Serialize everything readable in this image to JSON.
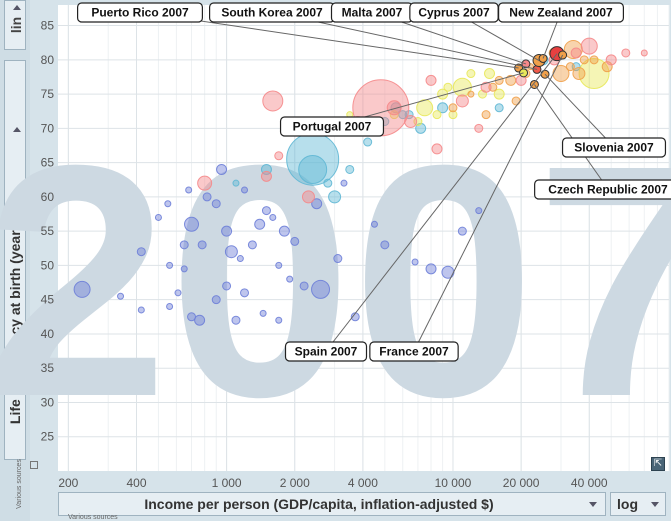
{
  "y_scale_selector": {
    "value": "lin"
  },
  "y_axis_selector": {
    "label": "Life expectancy at birth (years)",
    "source": "Various sources"
  },
  "x_axis_selector": {
    "label": "Income per person (GDP/capita, inflation-adjusted $)",
    "source": "Various sources"
  },
  "x_scale_selector": {
    "value": "log"
  },
  "chart_data": {
    "type": "scatter",
    "year_watermark": "2007",
    "xlabel": "Income per person (GDP/capita, inflation-adjusted $)",
    "ylabel": "Life expectancy at birth (years)",
    "x_scale": "log",
    "y_scale": "linear",
    "xlim": [
      180,
      90000
    ],
    "ylim": [
      20,
      88
    ],
    "x_ticks": [
      200,
      400,
      1000,
      2000,
      4000,
      10000,
      20000,
      40000
    ],
    "x_tick_labels": [
      "200",
      "400",
      "1 000",
      "2 000",
      "4 000",
      "10 000",
      "20 000",
      "40 000"
    ],
    "y_ticks": [
      25,
      30,
      35,
      40,
      45,
      50,
      55,
      60,
      65,
      70,
      75,
      80,
      85
    ],
    "grid": true,
    "highlighted": [
      {
        "name": "Puerto Rico 2007",
        "x": 19500,
        "y": 78.8
      },
      {
        "name": "South Korea 2007",
        "x": 23500,
        "y": 78.6
      },
      {
        "name": "Malta 2007",
        "x": 21000,
        "y": 79.4
      },
      {
        "name": "Cyprus 2007",
        "x": 24000,
        "y": 79.9
      },
      {
        "name": "New Zealand 2007",
        "x": 25000,
        "y": 80.2
      },
      {
        "name": "Portugal 2007",
        "x": 20500,
        "y": 78.1
      },
      {
        "name": "Slovenia 2007",
        "x": 25500,
        "y": 77.9
      },
      {
        "name": "Czech Republic 2007",
        "x": 22900,
        "y": 76.4
      },
      {
        "name": "Spain 2007",
        "x": 28800,
        "y": 80.9
      },
      {
        "name": "France 2007",
        "x": 30500,
        "y": 80.7
      }
    ],
    "series": [
      {
        "name": "africa",
        "color": "#6e7fd8",
        "points": [
          [
            230,
            46.5
          ],
          [
            340,
            45.5
          ],
          [
            420,
            43.5
          ],
          [
            560,
            44
          ],
          [
            610,
            46
          ],
          [
            650,
            49.5
          ],
          [
            700,
            42.5
          ],
          [
            760,
            42
          ],
          [
            900,
            45
          ],
          [
            1000,
            47
          ],
          [
            1100,
            42
          ],
          [
            1200,
            46
          ],
          [
            1450,
            43
          ],
          [
            1700,
            42
          ],
          [
            2200,
            47
          ],
          [
            2600,
            46.5
          ],
          [
            3700,
            42.5
          ],
          [
            8000,
            49.5
          ],
          [
            420,
            52
          ],
          [
            560,
            50
          ],
          [
            700,
            56
          ],
          [
            780,
            53
          ],
          [
            900,
            59
          ],
          [
            1000,
            55
          ],
          [
            1050,
            52
          ],
          [
            1150,
            51
          ],
          [
            1300,
            53
          ],
          [
            1400,
            56
          ],
          [
            1500,
            58
          ],
          [
            1600,
            57
          ],
          [
            1800,
            55
          ],
          [
            2000,
            53.5
          ],
          [
            2500,
            59
          ],
          [
            3100,
            51
          ],
          [
            3300,
            62
          ],
          [
            4500,
            56
          ],
          [
            5000,
            53
          ],
          [
            6800,
            50.5
          ],
          [
            9500,
            49
          ],
          [
            11000,
            55
          ],
          [
            13000,
            58
          ],
          [
            500,
            57
          ],
          [
            550,
            59
          ],
          [
            680,
            61
          ],
          [
            820,
            60
          ],
          [
            950,
            64
          ],
          [
            1200,
            61
          ],
          [
            650,
            53
          ],
          [
            1700,
            50
          ],
          [
            1900,
            48
          ]
        ],
        "sizes": [
          8,
          3,
          3,
          3,
          3,
          3,
          4,
          5,
          4,
          4,
          4,
          4,
          3,
          3,
          4,
          9,
          4,
          5,
          4,
          3,
          7,
          4,
          4,
          5,
          6,
          3,
          4,
          5,
          4,
          3,
          5,
          4,
          5,
          4,
          3,
          3,
          4,
          3,
          6,
          4,
          3,
          3,
          3,
          3,
          4,
          5,
          3,
          4,
          3,
          3
        ]
      },
      {
        "name": "asia",
        "color": "#5fb7d4",
        "points": [
          [
            2400,
            65.5
          ],
          [
            2400,
            64
          ],
          [
            3000,
            60
          ],
          [
            5000,
            71
          ],
          [
            5600,
            73
          ],
          [
            6000,
            72
          ],
          [
            7200,
            70
          ],
          [
            6400,
            72
          ],
          [
            3500,
            64
          ],
          [
            9000,
            73
          ],
          [
            1500,
            64
          ],
          [
            1100,
            62
          ],
          [
            2800,
            62
          ],
          [
            4200,
            68
          ],
          [
            16000,
            73
          ],
          [
            25000,
            80
          ],
          [
            35000,
            79
          ]
        ],
        "sizes": [
          26,
          14,
          6,
          4,
          5,
          4,
          5,
          4,
          4,
          5,
          5,
          3,
          4,
          4,
          4,
          5,
          4
        ]
      },
      {
        "name": "americas",
        "color": "#e8e85a",
        "points": [
          [
            5500,
            72
          ],
          [
            7500,
            73
          ],
          [
            8500,
            72
          ],
          [
            9000,
            75
          ],
          [
            10000,
            72
          ],
          [
            11000,
            76
          ],
          [
            12000,
            78
          ],
          [
            13500,
            75
          ],
          [
            14500,
            78
          ],
          [
            16000,
            75
          ],
          [
            42000,
            78
          ],
          [
            7000,
            71
          ],
          [
            9500,
            76
          ],
          [
            4000,
            71
          ],
          [
            3500,
            72
          ]
        ],
        "sizes": [
          4,
          8,
          4,
          5,
          4,
          9,
          4,
          4,
          5,
          5,
          15,
          4,
          4,
          4,
          3
        ]
      },
      {
        "name": "europe",
        "color": "#f0a04a",
        "points": [
          [
            10000,
            73
          ],
          [
            12000,
            75
          ],
          [
            14000,
            72
          ],
          [
            15000,
            76
          ],
          [
            16000,
            77
          ],
          [
            18000,
            77
          ],
          [
            19000,
            74
          ],
          [
            21000,
            78
          ],
          [
            22000,
            79
          ],
          [
            24000,
            80
          ],
          [
            30000,
            78
          ],
          [
            33000,
            79
          ],
          [
            38000,
            80
          ],
          [
            42000,
            80
          ],
          [
            48000,
            79
          ],
          [
            36000,
            78
          ],
          [
            34000,
            81.5
          ],
          [
            28000,
            81
          ]
        ],
        "sizes": [
          4,
          3,
          4,
          4,
          4,
          5,
          4,
          4,
          3,
          4,
          8,
          4,
          4,
          4,
          5,
          6,
          9,
          5
        ]
      },
      {
        "name": "middle_east",
        "color": "#f5888a",
        "points": [
          [
            1600,
            74
          ],
          [
            4800,
            73
          ],
          [
            5500,
            73
          ],
          [
            6500,
            71
          ],
          [
            8500,
            67
          ],
          [
            11000,
            74
          ],
          [
            14000,
            76
          ],
          [
            20000,
            77
          ],
          [
            28000,
            80
          ],
          [
            35000,
            81
          ],
          [
            40000,
            82
          ],
          [
            50000,
            80
          ],
          [
            58000,
            81
          ],
          [
            70000,
            81
          ],
          [
            2500,
            70
          ],
          [
            3800,
            71
          ],
          [
            8000,
            77
          ],
          [
            13000,
            70
          ],
          [
            1700,
            66
          ],
          [
            2300,
            60
          ],
          [
            3400,
            70
          ],
          [
            1500,
            63
          ],
          [
            800,
            62
          ]
        ],
        "sizes": [
          10,
          28,
          7,
          6,
          5,
          6,
          5,
          5,
          5,
          5,
          8,
          5,
          4,
          3,
          4,
          5,
          5,
          4,
          4,
          6,
          4,
          5,
          7
        ]
      }
    ]
  }
}
